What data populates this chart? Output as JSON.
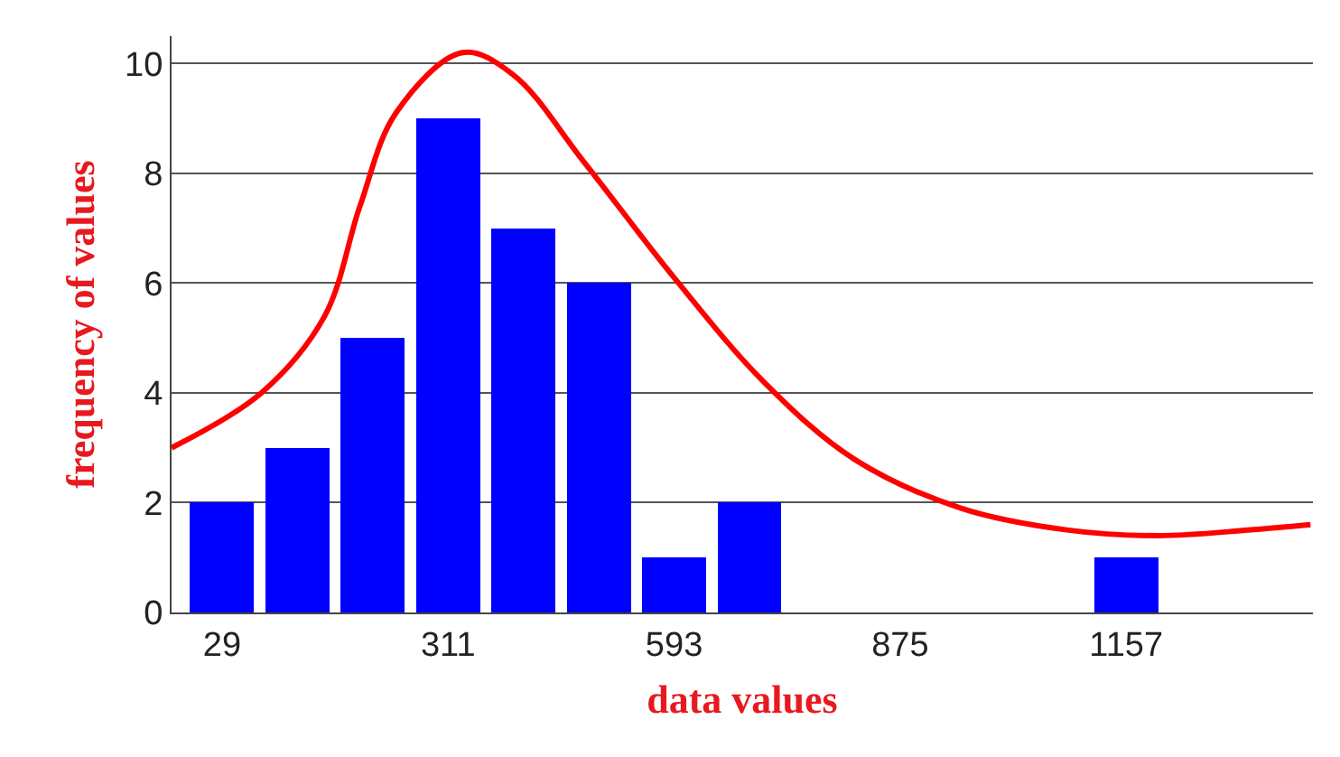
{
  "chart_data": {
    "type": "histogram",
    "xlabel": "data values",
    "ylabel": "frequency of values",
    "bins": [
      -18,
      76,
      170,
      264,
      358,
      452,
      546,
      640,
      734,
      828,
      922,
      1016,
      1110,
      1204
    ],
    "series": [
      {
        "color": "#0000ff",
        "values": [
          2,
          3,
          5,
          9,
          7,
          6,
          1,
          2,
          0,
          0,
          0,
          0,
          1
        ]
      },
      {
        "type": "line",
        "color": "#ff0000",
        "x": [
          -34,
          78,
          157,
          201,
          246,
          329,
          392,
          481,
          593,
          705,
          817,
          951,
          1085,
          1197,
          1309,
          1387
        ],
        "values": [
          3.0,
          4.0,
          5.4,
          7.4,
          9.1,
          10.2,
          9.8,
          8.2,
          6.1,
          4.2,
          2.8,
          1.9,
          1.5,
          1.4,
          1.5,
          1.6
        ]
      }
    ],
    "xlim": [
      -34,
      1390
    ],
    "xticks": [
      29,
      311,
      593,
      875,
      1157
    ],
    "ylim": [
      0,
      10.5
    ],
    "yticks": [
      0,
      2,
      4,
      6,
      8,
      10
    ],
    "grid": "y"
  }
}
